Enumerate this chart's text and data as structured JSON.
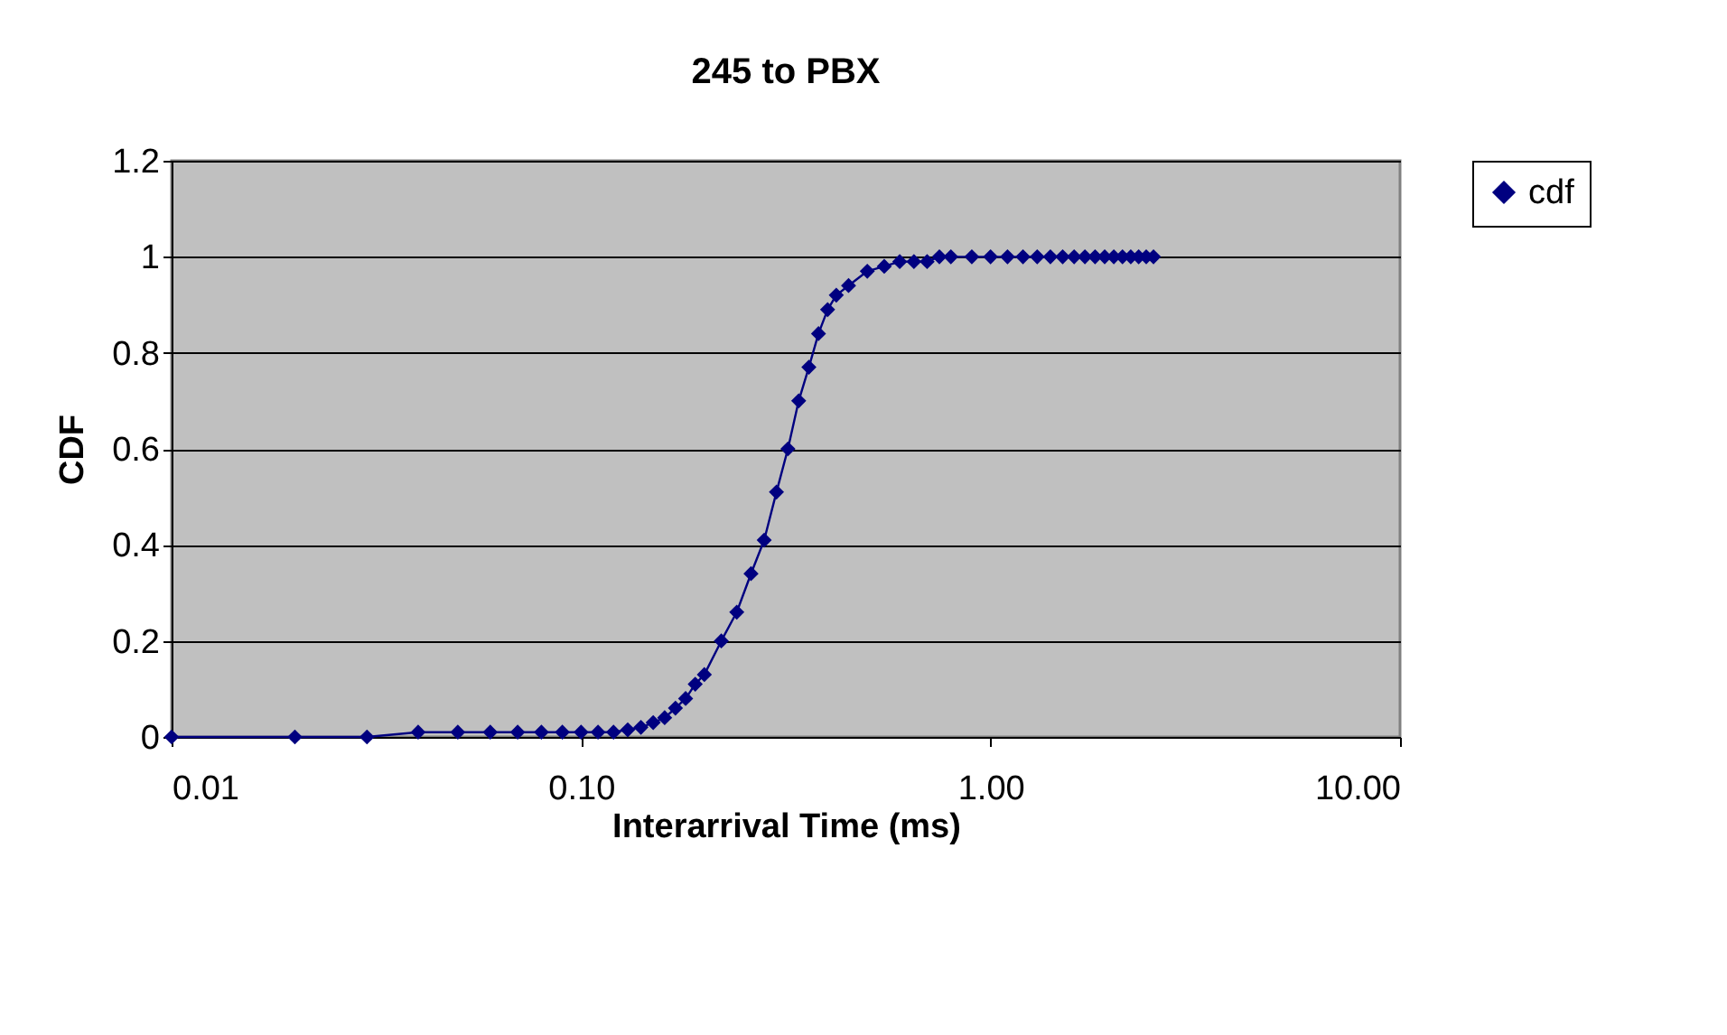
{
  "chart_data": {
    "type": "line",
    "title": "245 to PBX",
    "xlabel": "Interarrival Time (ms)",
    "ylabel": "CDF",
    "log": "x",
    "xlim": [
      0.01,
      10
    ],
    "xticks": [
      {
        "value": 0.01,
        "label": "0.01"
      },
      {
        "value": 0.1,
        "label": "0.10"
      },
      {
        "value": 1,
        "label": "1.00"
      },
      {
        "value": 10,
        "label": "10.00"
      }
    ],
    "ylim": [
      0,
      1.2
    ],
    "yticks": [
      0,
      0.2,
      0.4,
      0.6,
      0.8,
      1,
      1.2
    ],
    "grid": "y",
    "legend": "right",
    "marker": "diamond",
    "line_style": "solid",
    "series": [
      {
        "name": "cdf",
        "color": "#000080",
        "x": [
          0.01,
          0.02,
          0.03,
          0.04,
          0.05,
          0.06,
          0.07,
          0.08,
          0.09,
          0.1,
          0.11,
          0.12,
          0.13,
          0.14,
          0.15,
          0.16,
          0.17,
          0.18,
          0.19,
          0.2,
          0.22,
          0.24,
          0.26,
          0.28,
          0.3,
          0.32,
          0.34,
          0.36,
          0.38,
          0.4,
          0.42,
          0.45,
          0.5,
          0.55,
          0.6,
          0.65,
          0.7,
          0.75,
          0.8,
          0.9,
          1,
          1.1,
          1.2,
          1.3,
          1.4,
          1.5,
          1.6,
          1.7,
          1.8,
          1.9,
          2,
          2.1,
          2.2,
          2.3,
          2.4,
          2.5
        ],
        "values": [
          0,
          0,
          0,
          0.01,
          0.01,
          0.01,
          0.01,
          0.01,
          0.01,
          0.01,
          0.01,
          0.01,
          0.015,
          0.02,
          0.03,
          0.04,
          0.06,
          0.08,
          0.11,
          0.13,
          0.2,
          0.26,
          0.34,
          0.41,
          0.51,
          0.6,
          0.7,
          0.77,
          0.84,
          0.89,
          0.92,
          0.94,
          0.97,
          0.98,
          0.99,
          0.99,
          0.99,
          1,
          1,
          1,
          1,
          1,
          1,
          1,
          1,
          1,
          1,
          1,
          1,
          1,
          1,
          1,
          1,
          1,
          1,
          1
        ]
      }
    ]
  }
}
